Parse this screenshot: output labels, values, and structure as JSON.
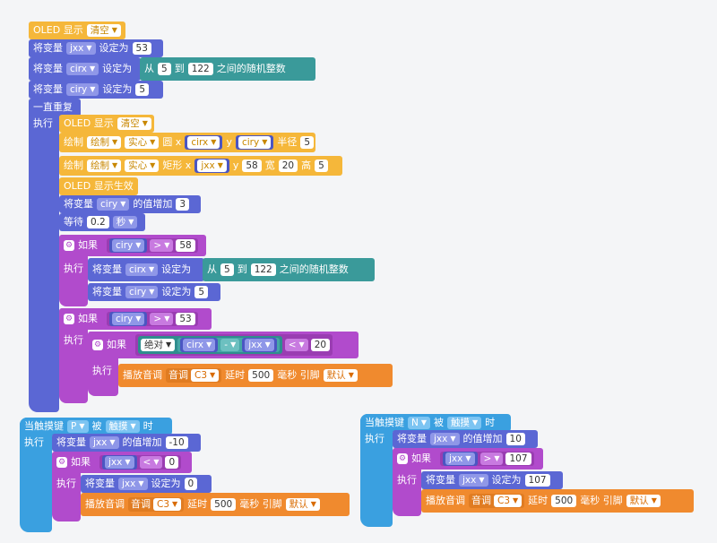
{
  "program": {
    "oled_display": "OLED 显示",
    "clear": "清空",
    "set_var": "将变量",
    "set_to": "设定为",
    "from": "从",
    "to": "到",
    "random_between": "之间的随机整数",
    "forever": "一直重复",
    "do": "执行",
    "draw": "绘制",
    "solid": "实心",
    "circle": "圆 x",
    "y": "y",
    "radius": "半径",
    "rect": "矩形 x",
    "width": "宽",
    "height": "高",
    "oled_show": "OLED 显示生效",
    "increase_by": "的值增加",
    "wait": "等待",
    "seconds": "秒",
    "if": "如果",
    "abs": "绝对",
    "play_tone": "播放音调",
    "tone": "音调",
    "delay": "延时",
    "ms_pin": "毫秒 引脚",
    "default": "默认",
    "on_touch": "当触摸键",
    "touched": "被",
    "touch_mode": "触摸",
    "when": "时",
    "var_jxx": "jxx",
    "var_cirx": "cirx",
    "var_ciry": "ciry",
    "op_gt": ">",
    "op_lt": "<",
    "op_minus": "-",
    "note_c3": "C3",
    "key_p": "P",
    "key_n": "N",
    "vals": {
      "jxx_init": "53",
      "rand1_from": "5",
      "rand1_to": "122",
      "ciry_init": "5",
      "circle_radius": "5",
      "rect_y": "58",
      "rect_w": "20",
      "rect_h": "5",
      "ciry_inc": "3",
      "wait": "0.2",
      "if1_cmp": "58",
      "rand2_from": "5",
      "rand2_to": "122",
      "ciry_reset": "5",
      "if2_cmp": "53",
      "abs_cmp": "20",
      "tone_delay": "500",
      "p_inc": "-10",
      "p_cmp": "0",
      "p_set": "0",
      "p_delay": "500",
      "n_inc": "10",
      "n_cmp": "107",
      "n_set": "107",
      "n_delay": "500"
    }
  }
}
